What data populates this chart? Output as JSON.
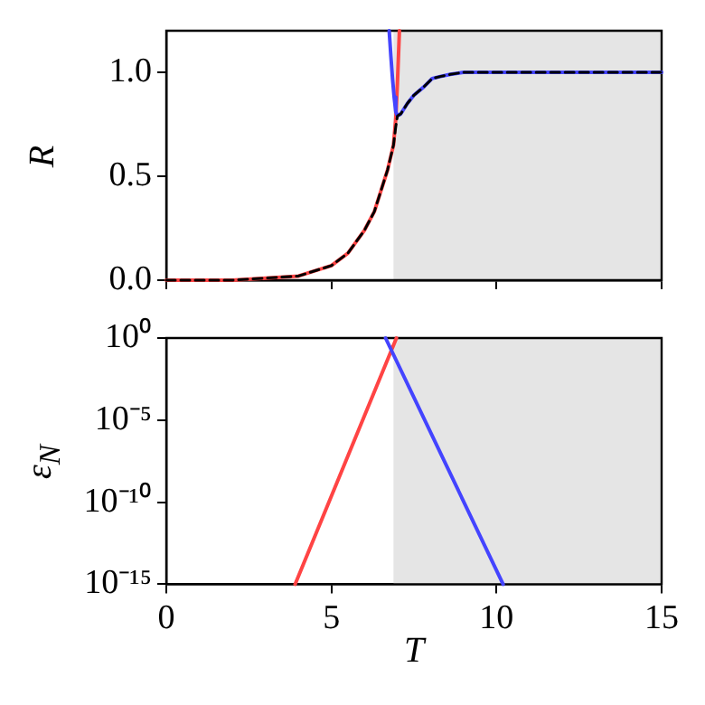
{
  "chart_data": [
    {
      "type": "line",
      "ylabel": "R",
      "xlim": [
        0,
        15
      ],
      "xticks": [
        0,
        5,
        10,
        15
      ],
      "ylim": [
        0,
        1.2
      ],
      "yticks": [
        {
          "value": 0,
          "label": "0.0"
        },
        {
          "value": 0.5,
          "label": "0.5"
        },
        {
          "value": 1,
          "label": "1.0"
        }
      ],
      "tick_labels": "y",
      "bands": [
        {
          "axis": "x",
          "from": 6.88,
          "to": 15,
          "color": "#e5e5e5"
        }
      ],
      "series": [
        {
          "color": "#ff4444",
          "x": [
            0,
            1,
            2,
            3,
            4,
            5,
            5.5,
            6,
            6.3,
            6.5,
            6.7,
            6.88,
            6.95,
            7.0,
            7.06
          ],
          "values": [
            0,
            0,
            0,
            0.01,
            0.02,
            0.07,
            0.13,
            0.24,
            0.33,
            0.43,
            0.53,
            0.65,
            0.78,
            0.95,
            1.2
          ]
        },
        {
          "color": "#4444ff",
          "x": [
            6.75,
            6.8,
            6.85,
            6.9,
            6.95,
            7.0,
            7.1,
            7.3,
            7.5,
            7.8,
            8.05,
            8.3,
            8.6,
            9,
            10,
            12,
            15
          ],
          "values": [
            1.2,
            1.08,
            0.97,
            0.88,
            0.81,
            0.79,
            0.8,
            0.85,
            0.89,
            0.93,
            0.97,
            0.98,
            0.99,
            1.0,
            1.0,
            1.0,
            1.0
          ]
        },
        {
          "color": "#000000",
          "line_style": "dashed",
          "x": [
            0,
            1,
            2,
            3,
            4,
            5,
            5.5,
            6,
            6.3,
            6.5,
            6.7,
            6.88,
            6.95,
            7.0,
            7.1,
            7.3,
            7.5,
            7.8,
            8.05,
            8.3,
            8.6,
            9,
            10,
            12,
            15
          ],
          "values": [
            0,
            0,
            0,
            0.01,
            0.02,
            0.07,
            0.13,
            0.24,
            0.33,
            0.43,
            0.53,
            0.65,
            0.74,
            0.79,
            0.8,
            0.85,
            0.89,
            0.93,
            0.97,
            0.98,
            0.99,
            1.0,
            1.0,
            1.0,
            1.0
          ]
        }
      ]
    },
    {
      "type": "line",
      "xlabel": "T",
      "ylabel": "ε$_{N}$",
      "log": "y",
      "xlim": [
        0,
        15
      ],
      "xticks": [
        0,
        5,
        10,
        15
      ],
      "ylim": [
        1e-15,
        1
      ],
      "yticks": [
        {
          "value": 1,
          "label": "10⁰"
        },
        {
          "value": 1e-05,
          "label": "10⁻⁵"
        },
        {
          "value": 1e-10,
          "label": "10⁻¹⁰"
        },
        {
          "value": 1e-15,
          "label": "10⁻¹⁵"
        }
      ],
      "bands": [
        {
          "axis": "x",
          "from": 6.88,
          "to": 15,
          "color": "#e5e5e5"
        }
      ],
      "series": [
        {
          "color": "#ff4444",
          "x": [
            3.9,
            6.97
          ],
          "values": [
            1e-15,
            1
          ]
        },
        {
          "color": "#4444ff",
          "x": [
            6.64,
            10.2
          ],
          "values": [
            1,
            1e-15
          ]
        }
      ]
    }
  ]
}
